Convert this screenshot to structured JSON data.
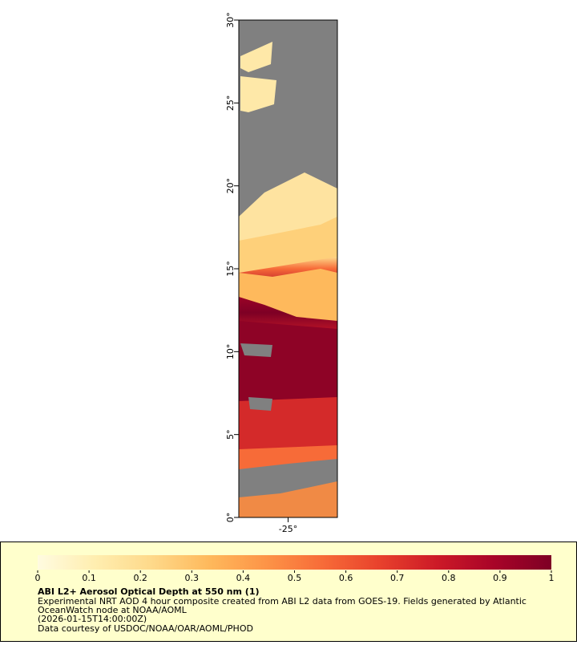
{
  "map": {
    "xlim": [
      -28,
      -22
    ],
    "ylim": [
      0,
      30
    ],
    "xticks": [
      {
        "value": -25,
        "label": "-25°"
      }
    ],
    "yticks": [
      {
        "value": 0,
        "label": "0°"
      },
      {
        "value": 5,
        "label": "5°"
      },
      {
        "value": 10,
        "label": "10°"
      },
      {
        "value": 15,
        "label": "15°"
      },
      {
        "value": 20,
        "label": "20°"
      },
      {
        "value": 25,
        "label": "25°"
      },
      {
        "value": 30,
        "label": "30°"
      }
    ],
    "land_color": "#808080"
  },
  "colorbar": {
    "lim": [
      0,
      1
    ],
    "ticks": [
      0,
      0.1,
      0.2,
      0.3,
      0.4,
      0.5,
      0.6,
      0.7,
      0.8,
      0.9,
      1
    ],
    "colors": [
      "#fffbe0",
      "#ffeeb0",
      "#fed98a",
      "#feb95c",
      "#fd9447",
      "#f76b38",
      "#e8412c",
      "#cc1a27",
      "#a80428",
      "#7e0025"
    ]
  },
  "legend": {
    "title": "ABI L2+ Aerosol Optical Depth at 550 nm (1)",
    "lines": [
      "Experimental NRT AOD 4 hour composite created from ABI L2 data from GOES-19. Fields generated by Atlantic",
      "OceanWatch node at NOAA/AOML",
      "(2026-01-15T14:00:00Z)",
      "Data courtesy of USDOC/NOAA/OAR/AOML/PHOD"
    ]
  }
}
